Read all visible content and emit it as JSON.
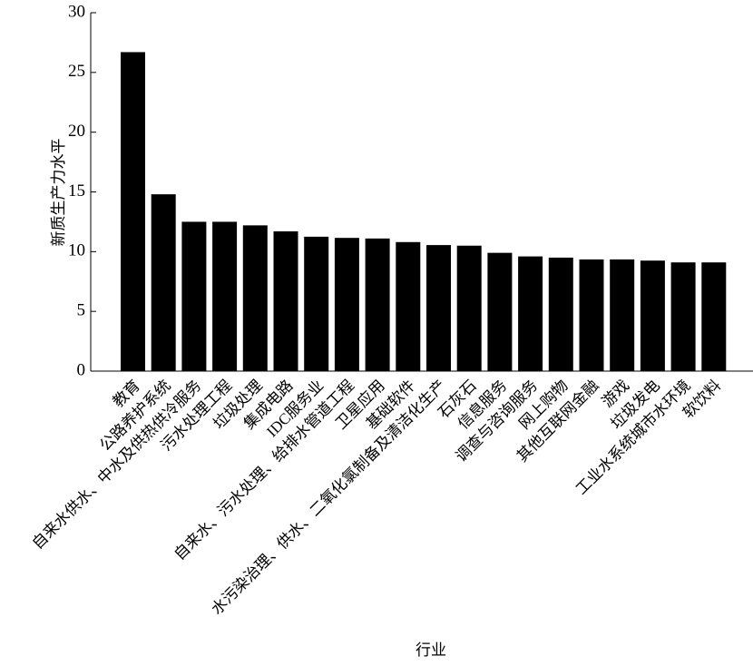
{
  "chart_data": {
    "type": "bar",
    "x_label": "行业",
    "y_label": "新质生产力水平",
    "categories": [
      "教育",
      "公路养护系统",
      "自来水供水、中水及供热供冷服务",
      "污水处理工程",
      "垃圾处理",
      "集成电路",
      "IDC服务业",
      "自来水、污水处理、给排水管道工程",
      "卫星应用",
      "基础软件",
      "水污染治理、供水、二氧化氯制备及清洁化生产",
      "石灰石",
      "信息服务",
      "调查与咨询服务",
      "网上购物",
      "其他互联网金融",
      "游戏",
      "垃圾发电",
      "工业水系统城市水环境",
      "软饮料"
    ],
    "values": [
      26.7,
      14.8,
      12.5,
      12.5,
      12.2,
      11.7,
      11.25,
      11.15,
      11.1,
      10.8,
      10.55,
      10.5,
      9.9,
      9.6,
      9.5,
      9.35,
      9.35,
      9.25,
      9.1,
      9.1
    ],
    "color": "#000000",
    "ylim": [
      0,
      30
    ],
    "yticks": [
      0,
      5,
      10,
      15,
      20,
      25,
      30
    ]
  }
}
